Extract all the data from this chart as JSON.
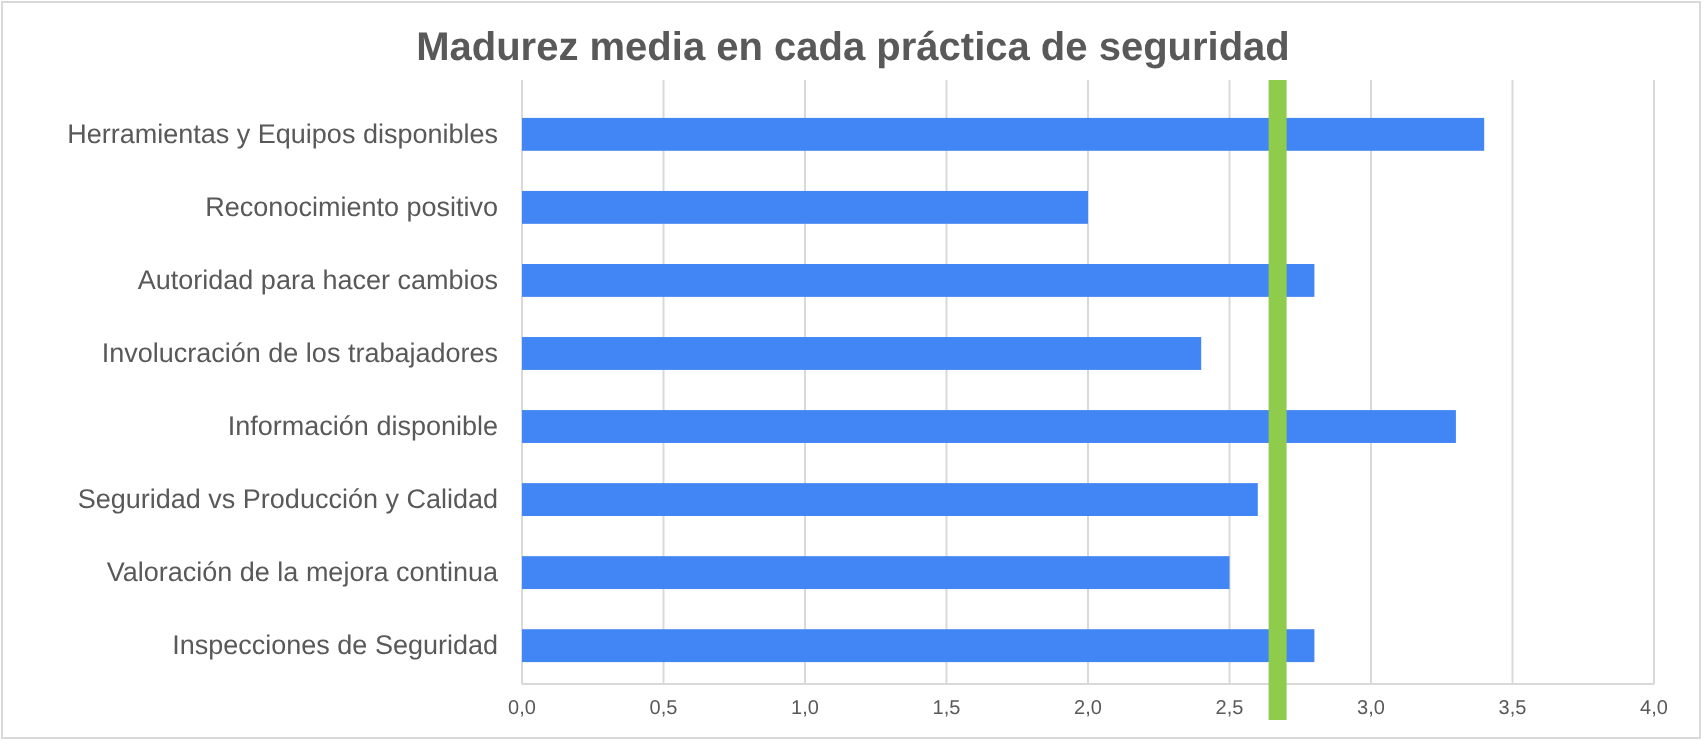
{
  "chart_data": {
    "type": "bar",
    "orientation": "horizontal",
    "title": "Madurez media en cada práctica de seguridad",
    "categories": [
      "Herramientas y Equipos disponibles",
      "Reconocimiento positivo",
      "Autoridad para hacer cambios",
      "Involucración de los trabajadores",
      "Información disponible",
      "Seguridad vs Producción y Calidad",
      "Valoración de la mejora continua",
      "Inspecciones de Seguridad"
    ],
    "values": [
      3.4,
      2.0,
      2.8,
      2.4,
      3.3,
      2.6,
      2.5,
      2.8
    ],
    "color": "#4285f4",
    "xlim": [
      0,
      4
    ],
    "xticks": [
      {
        "value": 0,
        "label": "0,0"
      },
      {
        "value": 0.5,
        "label": "0,5"
      },
      {
        "value": 1,
        "label": "1,0"
      },
      {
        "value": 1.5,
        "label": "1,5"
      },
      {
        "value": 2,
        "label": "2,0"
      },
      {
        "value": 2.5,
        "label": "2,5"
      },
      {
        "value": 3,
        "label": "3,0"
      },
      {
        "value": 3.5,
        "label": "3,5"
      },
      {
        "value": 4,
        "label": "4,0"
      }
    ],
    "grid": "x",
    "ref_lines": [
      {
        "axis": "x",
        "value": 2.67,
        "color": "#8fcc4c"
      }
    ]
  }
}
